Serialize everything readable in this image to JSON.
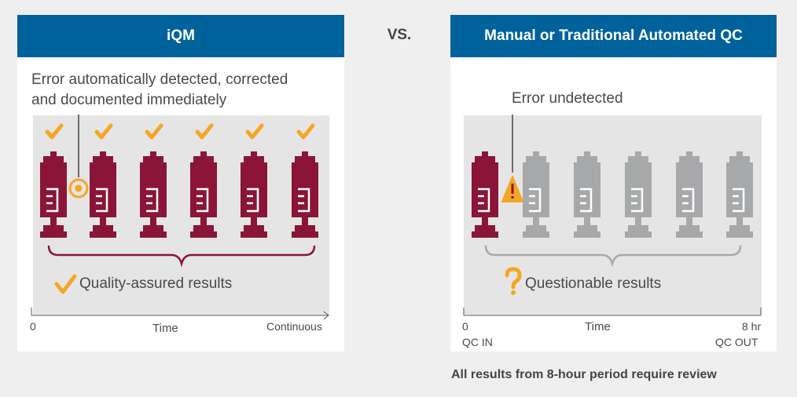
{
  "header": {
    "left_title": "iQM",
    "vs_label": "VS.",
    "right_title": "Manual or Traditional Automated QC"
  },
  "left_panel": {
    "callout_line1": "Error automatically detected, corrected",
    "callout_line2": "and documented immediately",
    "result_label": "Quality-assured results",
    "axis_start": "0",
    "axis_middle": "Time",
    "axis_end": "Continuous",
    "icons": {
      "check": "check-icon",
      "error_marker": "target-icon",
      "syringe": "syringe-icon"
    }
  },
  "right_panel": {
    "callout": "Error undetected",
    "result_label": "Questionable results",
    "axis_start": "0",
    "axis_start_sub": "QC IN",
    "axis_middle": "Time",
    "axis_end": "8 hr",
    "axis_end_sub": "QC OUT",
    "icons": {
      "warning": "warning-icon",
      "question": "question-mark-icon",
      "syringe": "syringe-icon"
    }
  },
  "footer": {
    "note": "All results from 8-hour period require review"
  },
  "colors": {
    "header_blue": "#00629b",
    "syringe_maroon": "#8a1538",
    "syringe_gray": "#a7a8aa",
    "check_orange": "#f5a623",
    "panel_bg": "#ffffff",
    "page_bg": "#f0eff0"
  }
}
